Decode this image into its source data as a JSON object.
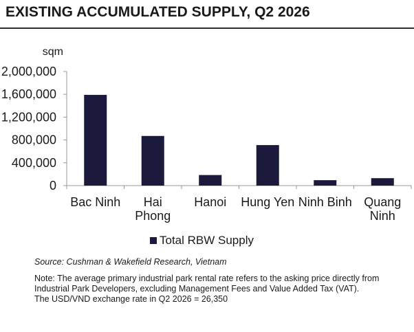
{
  "header": {
    "title": "EXISTING ACCUMULATED SUPPLY, Q2 2026"
  },
  "colors": {
    "bar": "#1b1a3c",
    "axis": "#9a9a9a",
    "rule": "#2b2b2b"
  },
  "chart_data": {
    "type": "bar",
    "title": "EXISTING ACCUMULATED SUPPLY, Q2 2026",
    "ylabel": "sqm",
    "xlabel": "",
    "categories": [
      {
        "id": "bac-ninh",
        "lines": [
          "Bac Ninh"
        ]
      },
      {
        "id": "hai-phong",
        "lines": [
          "Hai",
          "Phong"
        ]
      },
      {
        "id": "hanoi",
        "lines": [
          "Hanoi"
        ]
      },
      {
        "id": "hung-yen",
        "lines": [
          "Hung Yen"
        ]
      },
      {
        "id": "ninh-binh",
        "lines": [
          "Ninh Binh"
        ]
      },
      {
        "id": "quang-ninh",
        "lines": [
          "Quang",
          "Ninh"
        ]
      }
    ],
    "series": [
      {
        "name": "Total RBW Supply",
        "values": [
          1590000,
          870000,
          185000,
          710000,
          95000,
          130000
        ]
      }
    ],
    "ylim": [
      0,
      2000000
    ],
    "yticks": [
      0,
      400000,
      800000,
      1200000,
      1600000,
      2000000
    ],
    "ytick_labels": [
      "0",
      "400,000",
      "800,000",
      "1,200,000",
      "1,600,000",
      "2,000,000"
    ],
    "grid": false,
    "legend_position": "bottom-center"
  },
  "legend": {
    "label": "Total RBW Supply"
  },
  "footer": {
    "source": "Source: Cushman & Wakefield Research, Vietnam",
    "note_line1": "Note: The average primary industrial park rental rate refers to the asking price directly from Industrial Park Developers, excluding Management Fees and Value Added Tax (VAT).",
    "note_line2": "The USD/VND exchange rate in Q2 2026 = 26,350"
  }
}
